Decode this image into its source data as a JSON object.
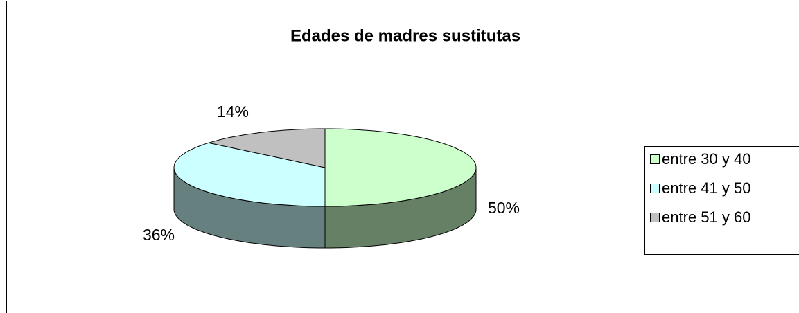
{
  "chart_data": {
    "type": "pie",
    "title": "Edades de madres sustitutas",
    "categories": [
      "entre 30 y 40",
      "entre 41 y 50",
      "entre 51 y 60"
    ],
    "values": [
      50,
      36,
      14
    ],
    "value_labels": [
      "50%",
      "36%",
      "14%"
    ],
    "colors": [
      "#ccffcc",
      "#ccffff",
      "#c0c0c0"
    ],
    "legend": "right"
  }
}
